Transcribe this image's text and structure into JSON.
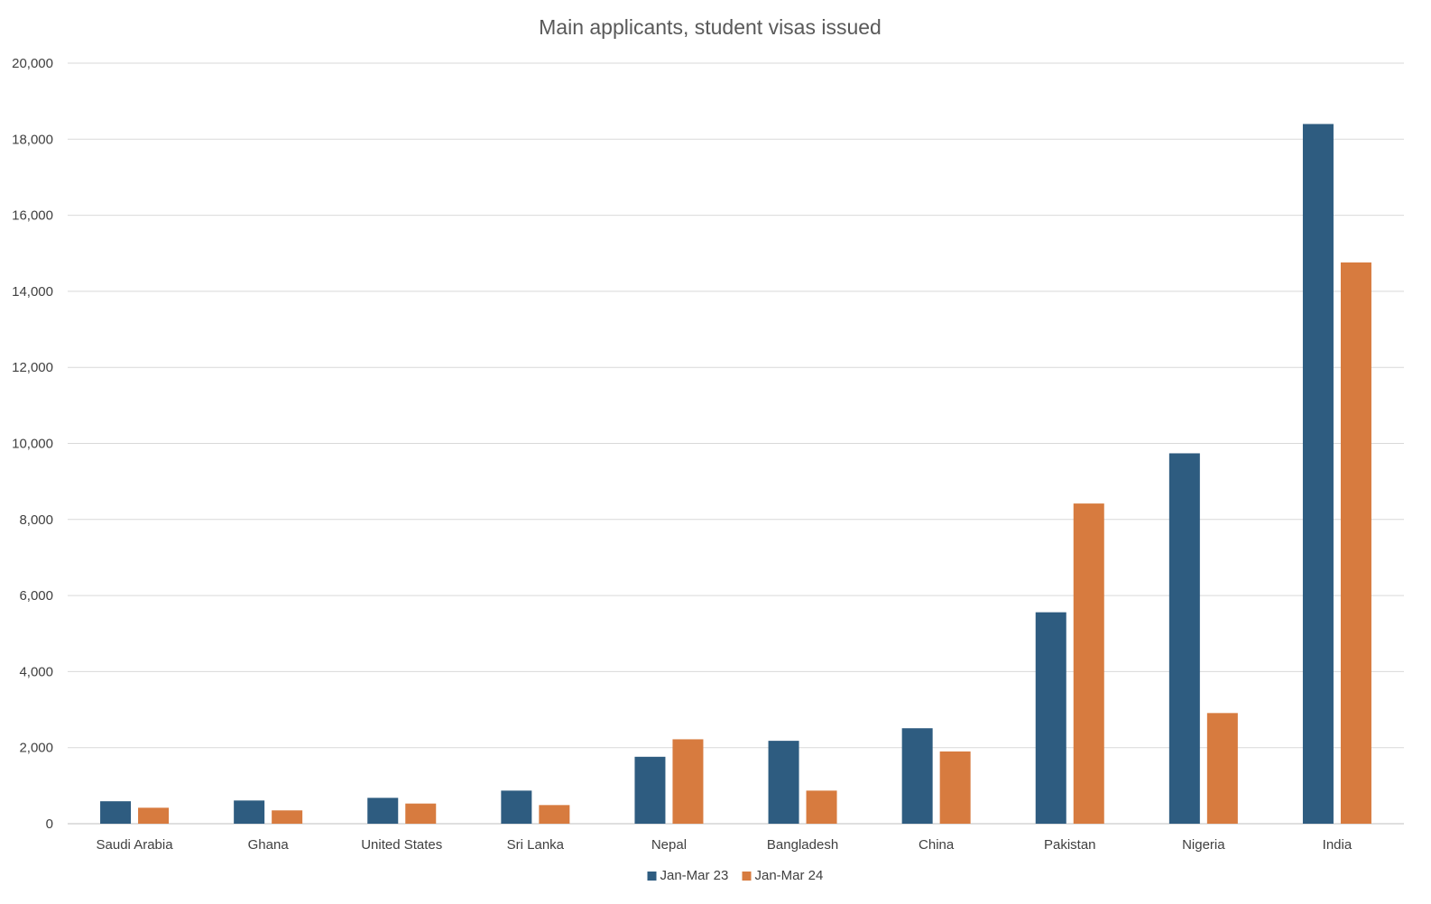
{
  "chart_data": {
    "type": "bar",
    "title": "Main applicants, student visas issued",
    "xlabel": "",
    "ylabel": "",
    "categories": [
      "Saudi Arabia",
      "Ghana",
      "United States",
      "Sri Lanka",
      "Nepal",
      "Bangladesh",
      "China",
      "Pakistan",
      "Nigeria",
      "India"
    ],
    "series": [
      {
        "name": "Jan-Mar 23",
        "color": "#2e5c80",
        "values": [
          590,
          610,
          680,
          870,
          1760,
          2180,
          2510,
          5560,
          9740,
          18400
        ]
      },
      {
        "name": "Jan-Mar 24",
        "color": "#d77b3f",
        "values": [
          420,
          350,
          530,
          490,
          2220,
          870,
          1900,
          8420,
          2910,
          14760
        ]
      }
    ],
    "ylim": [
      0,
      20000
    ],
    "yticks": [
      0,
      2000,
      4000,
      6000,
      8000,
      10000,
      12000,
      14000,
      16000,
      18000,
      20000
    ],
    "ytick_labels": [
      "0",
      "2,000",
      "4,000",
      "6,000",
      "8,000",
      "10,000",
      "12,000",
      "14,000",
      "16,000",
      "18,000",
      "20,000"
    ],
    "grid": true,
    "legend": "bottom"
  }
}
